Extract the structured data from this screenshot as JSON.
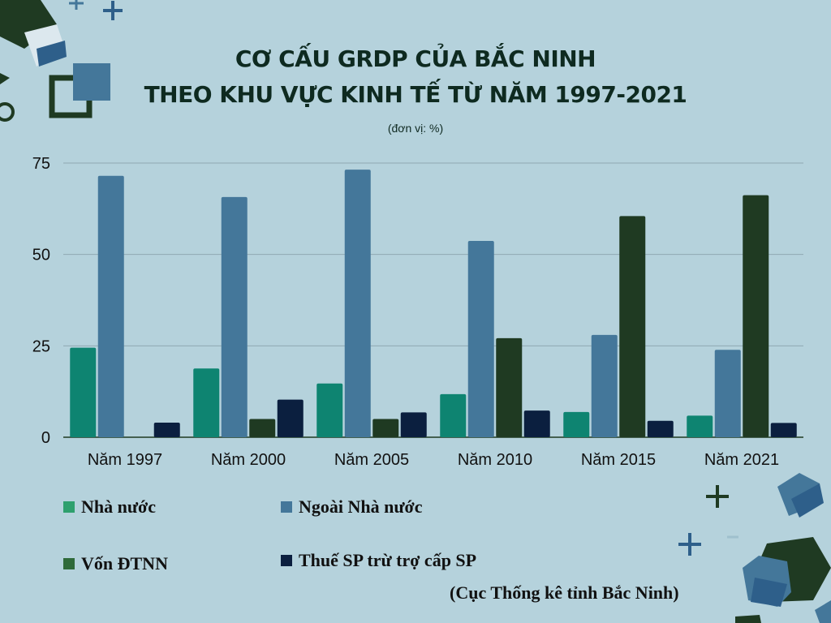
{
  "title_line1": "CƠ CẤU GRDP CỦA BẮC NINH",
  "title_line2": "THEO KHU VỰC KINH TẾ TỪ NĂM 1997-2021",
  "unit_note": "(đơn vị: %)",
  "source": "(Cục Thống kê tỉnh Bắc Ninh)",
  "colors": {
    "background": "#b5d2dc",
    "nha_nuoc": "#0e8471",
    "ngoai_nha_nuoc": "#44779a",
    "von_dtnn": "#1f3a22",
    "thue": "#0b1f3f",
    "grid": "#8fa8b2"
  },
  "legend": [
    {
      "label": "Nhà nước",
      "color": "#2ea06e"
    },
    {
      "label": "Ngoài Nhà nước",
      "color": "#44779a"
    },
    {
      "label": "Vốn ĐTNN",
      "color": "#2f6a3a"
    },
    {
      "label": "Thuế SP trừ trợ cấp SP",
      "color": "#0b1f3f"
    }
  ],
  "chart_data": {
    "type": "bar",
    "categories": [
      "Năm 1997",
      "Năm 2000",
      "Năm 2005",
      "Năm 2010",
      "Năm 2015",
      "Năm 2021"
    ],
    "series": [
      {
        "name": "Nhà nước",
        "values": [
          24.5,
          18.8,
          14.7,
          11.8,
          6.9,
          5.9
        ]
      },
      {
        "name": "Ngoài Nhà nước",
        "values": [
          71.5,
          65.7,
          73.2,
          53.7,
          28.0,
          23.9
        ]
      },
      {
        "name": "Vốn ĐTNN",
        "values": [
          0,
          5.0,
          5.0,
          27.1,
          60.5,
          66.2
        ]
      },
      {
        "name": "Thuế SP trừ trợ cấp SP",
        "values": [
          4.0,
          10.3,
          6.8,
          7.3,
          4.5,
          3.9
        ]
      }
    ],
    "yticks": [
      0,
      25,
      50,
      75
    ],
    "ylim": [
      0,
      75
    ],
    "grid": true,
    "legend_position": "bottom"
  }
}
